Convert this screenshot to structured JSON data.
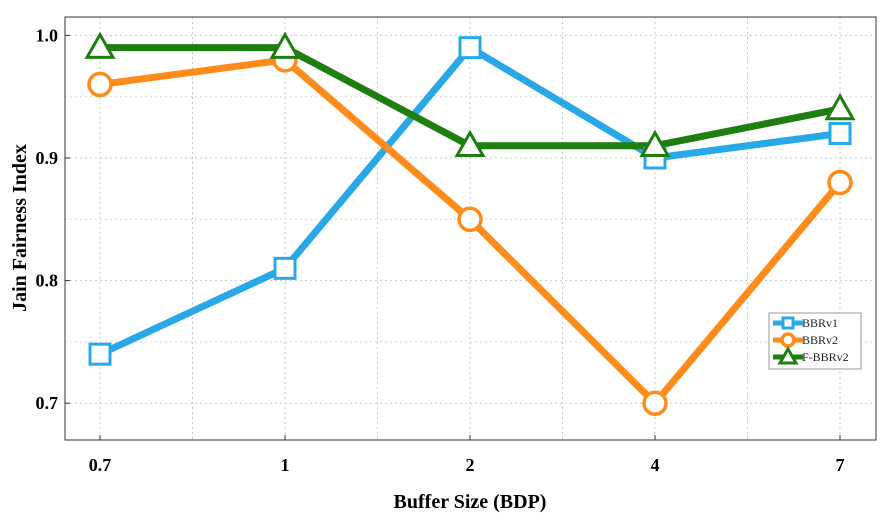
{
  "chart_data": {
    "type": "line",
    "categories": [
      "0.7",
      "1",
      "2",
      "4",
      "7"
    ],
    "xlabel": "Buffer Size (BDP)",
    "ylabel": "Jain Fairness Index",
    "ylim": [
      0.67,
      1.015
    ],
    "yticks": [
      "0.7",
      "0.8",
      "0.9",
      "1.0"
    ],
    "grid": true,
    "legend_position": "right",
    "series": [
      {
        "name": "BBRv1",
        "color": "#29a8e8",
        "marker": "square",
        "values": [
          0.74,
          0.81,
          0.99,
          0.9,
          0.92
        ]
      },
      {
        "name": "BBRv2",
        "color": "#ff8c1a",
        "marker": "circle",
        "values": [
          0.96,
          0.98,
          0.85,
          0.7,
          0.88
        ]
      },
      {
        "name": "F-BBRv2",
        "color": "#1e7e10",
        "marker": "triangle",
        "values": [
          0.99,
          0.99,
          0.91,
          0.91,
          0.94
        ]
      }
    ]
  }
}
